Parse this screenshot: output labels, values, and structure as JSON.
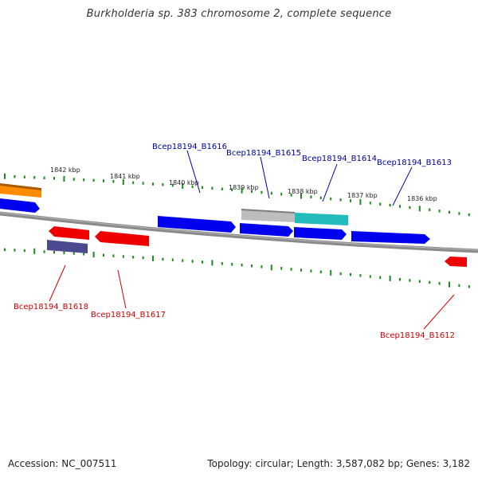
{
  "title": "Burkholderia sp. 383 chromosome 2, complete sequence",
  "colors": {
    "forward_gene": "#0000ee",
    "reverse_gene": "#ee0000",
    "forward_label": "#000099",
    "reverse_label": "#cc0000",
    "tick": "#1a8a1a",
    "backbone": "#777777"
  },
  "kbp_labels": [
    "1842 kbp",
    "1841 kbp",
    "1840 kbp",
    "1839 kbp",
    "1838 kbp",
    "1837 kbp",
    "1836 kbp"
  ],
  "gene_labels_forward": [
    "Bcep18194_B1616",
    "Bcep18194_B1615",
    "Bcep18194_B1614",
    "Bcep18194_B1613"
  ],
  "gene_labels_reverse": [
    "Bcep18194_B1618",
    "Bcep18194_B1617",
    "Bcep18194_B1612"
  ],
  "footer": {
    "accession": "Accession: NC_007511",
    "summary": "Topology: circular; Length: 3,587,082 bp; Genes: 3,182"
  }
}
